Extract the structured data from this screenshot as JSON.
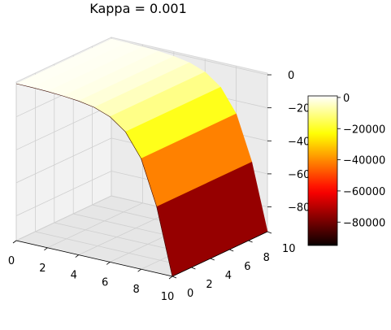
{
  "chart_data": {
    "type": "surface3d",
    "title": "Kappa = 0.001",
    "x_axis": {
      "ticks": [
        0,
        2,
        4,
        6,
        8,
        10
      ],
      "range": [
        0,
        10
      ]
    },
    "y_axis": {
      "ticks": [
        0,
        2,
        4,
        6,
        8,
        10
      ],
      "range": [
        0,
        10
      ]
    },
    "z_axis": {
      "ticks": [
        0,
        -20000,
        -40000,
        -60000,
        -80000
      ],
      "tick_labels": [
        "0",
        "−20000",
        "−40000",
        "−60000",
        "−80000"
      ],
      "range": [
        -95000,
        1000
      ]
    },
    "colormap": "hot",
    "colorbar": {
      "ticks": [
        0,
        -20000,
        -40000,
        -60000,
        -80000
      ],
      "tick_labels": [
        "0",
        "−20000",
        "−40000",
        "−60000",
        "−80000"
      ],
      "range": [
        -95000,
        1000
      ]
    },
    "surface_profile": {
      "x": [
        0,
        1,
        2,
        3,
        4,
        5,
        6,
        7,
        8,
        9,
        10
      ],
      "z": [
        0,
        -100,
        -400,
        -900,
        -1800,
        -3500,
        -7000,
        -14000,
        -28000,
        -55000,
        -95000
      ],
      "note_constant_along": "y"
    }
  }
}
